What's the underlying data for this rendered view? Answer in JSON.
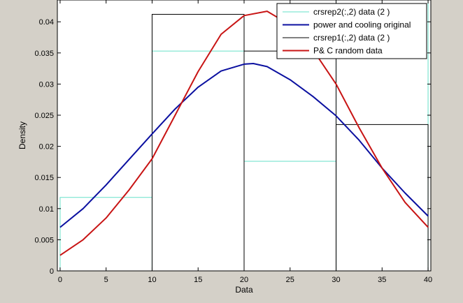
{
  "window": {
    "background": "#d4d0c8"
  },
  "chart_data": {
    "type": "histogram-density",
    "xlabel": "Data",
    "ylabel": "Density",
    "xlim": [
      -0.3,
      40.3
    ],
    "ylim": [
      0,
      0.0435
    ],
    "xticks": [
      0,
      5,
      10,
      15,
      20,
      25,
      30,
      35,
      40
    ],
    "xtick_labels": [
      "0",
      "5",
      "10",
      "15",
      "20",
      "25",
      "30",
      "35",
      "40"
    ],
    "yticks": [
      0,
      0.005,
      0.01,
      0.015,
      0.02,
      0.025,
      0.03,
      0.035,
      0.04
    ],
    "ytick_labels": [
      "0",
      "0.005",
      "0.01",
      "0.015",
      "0.02",
      "0.025",
      "0.03",
      "0.035",
      "0.04"
    ],
    "grid": false,
    "legend_position": "top-right",
    "series": [
      {
        "name": "crsrep2(:,2) data (2 )",
        "kind": "histogram",
        "color": "#66e0c8",
        "bins": [
          [
            0,
            10,
            0.0118
          ],
          [
            10,
            20,
            0.0353
          ],
          [
            20,
            30,
            0.0176
          ],
          [
            30,
            40,
            0.0471
          ]
        ]
      },
      {
        "name": "power and cooling original",
        "kind": "line",
        "color": "#0b10a0",
        "x": [
          0,
          2.5,
          5,
          7.5,
          10,
          12.5,
          15,
          17.5,
          20,
          21,
          22.5,
          25,
          27.5,
          30,
          32.5,
          35,
          37.5,
          40
        ],
        "y": [
          0.007,
          0.01,
          0.0138,
          0.0179,
          0.022,
          0.026,
          0.0295,
          0.0321,
          0.0332,
          0.0333,
          0.0328,
          0.0307,
          0.028,
          0.0249,
          0.021,
          0.0165,
          0.0125,
          0.0088
        ]
      },
      {
        "name": "crsrep1(:,2) data (2 )",
        "kind": "histogram",
        "color": "#000000",
        "bins": [
          [
            10,
            20,
            0.0412
          ],
          [
            20,
            30,
            0.0353
          ],
          [
            30,
            40,
            0.0235
          ]
        ]
      },
      {
        "name": "P& C random data",
        "kind": "line",
        "color": "#c81414",
        "x": [
          0,
          2.5,
          5,
          7.5,
          10,
          12.5,
          15,
          17.5,
          20,
          22.5,
          25,
          27.5,
          30,
          32.5,
          35,
          37.5,
          40
        ],
        "y": [
          0.0025,
          0.005,
          0.0085,
          0.013,
          0.018,
          0.025,
          0.032,
          0.038,
          0.041,
          0.0417,
          0.0395,
          0.0355,
          0.03,
          0.023,
          0.0165,
          0.011,
          0.007
        ]
      }
    ]
  }
}
